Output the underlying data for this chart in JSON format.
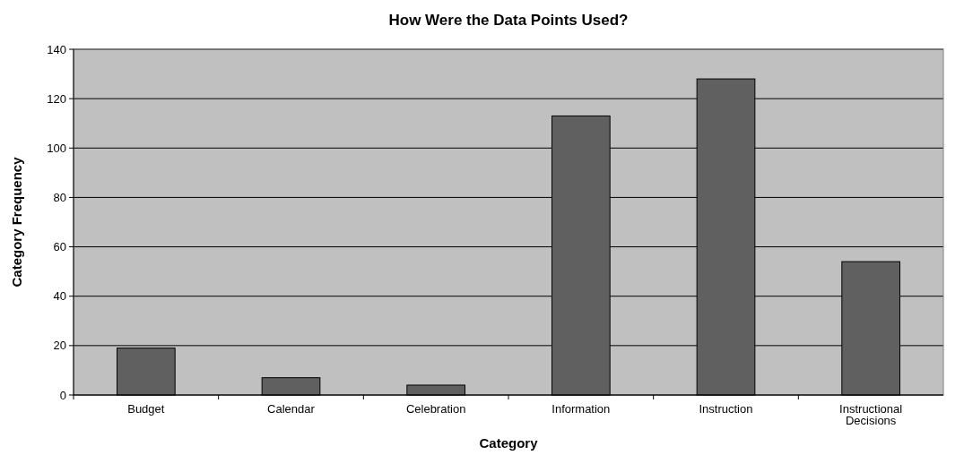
{
  "chart_data": {
    "type": "bar",
    "title": "How Were the Data Points Used?",
    "xlabel": "Category",
    "ylabel": "Category Frequency",
    "categories": [
      "Budget",
      "Calendar",
      "Celebration",
      "Information",
      "Instruction",
      "Instructional Decisions"
    ],
    "values": [
      19,
      7,
      4,
      113,
      128,
      54
    ],
    "color": "#606060",
    "ylim": [
      0,
      140
    ],
    "yticks": [
      0,
      20,
      40,
      60,
      80,
      100,
      120,
      140
    ],
    "grid": "y"
  }
}
